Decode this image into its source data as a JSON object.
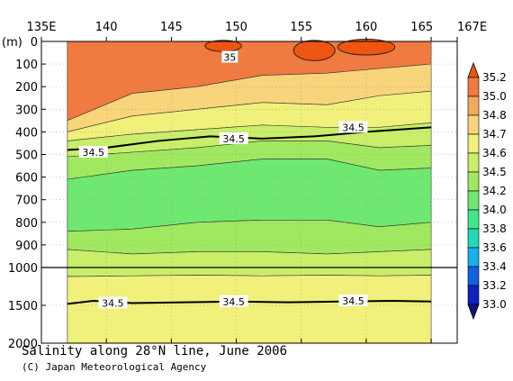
{
  "chart_data": {
    "type": "heatmap",
    "title": "Salinity along 28°N line, June 2006",
    "credit": "(C) Japan Meteorological Agency",
    "x_ticks": [
      {
        "label": "135E",
        "lon": 135
      },
      {
        "label": "140",
        "lon": 140
      },
      {
        "label": "145",
        "lon": 145
      },
      {
        "label": "150",
        "lon": 150
      },
      {
        "label": "155",
        "lon": 155
      },
      {
        "label": "160",
        "lon": 160
      },
      {
        "label": "165",
        "lon": 165
      },
      {
        "label": "167E",
        "lon": 167
      }
    ],
    "y_unit_label": "(m)",
    "y_ticks_upper": [
      0,
      100,
      200,
      300,
      400,
      500,
      600,
      700,
      800,
      900,
      1000
    ],
    "y_ticks_lower": [
      1500,
      2000
    ],
    "xlim": [
      135,
      167
    ],
    "data_lon_range": [
      137,
      165
    ],
    "ylim_upper": [
      0,
      1000
    ],
    "ylim_lower": [
      1000,
      2000
    ],
    "colorbar": {
      "labels": [
        "35.2",
        "35.0",
        "34.8",
        "34.7",
        "34.6",
        "34.5",
        "34.2",
        "34.0",
        "33.8",
        "33.6",
        "33.4",
        "33.2",
        "33.0"
      ],
      "colors": [
        "#ee5511",
        "#f07a40",
        "#f5aa5a",
        "#f8d47a",
        "#f0f07a",
        "#c8ee6a",
        "#a0e860",
        "#6ee870",
        "#3ee88a",
        "#22d8b8",
        "#18b0e8",
        "#1060e0",
        "#1020c0",
        "#101080"
      ]
    },
    "bands_upper": [
      {
        "value": 34.9,
        "color": "#f07a40",
        "top": [
          0,
          0,
          0,
          0,
          0,
          0,
          0
        ],
        "bottom": [
          350,
          230,
          200,
          150,
          140,
          120,
          100
        ]
      },
      {
        "value": 34.75,
        "color": "#f8d47a",
        "bottom": [
          400,
          330,
          300,
          270,
          280,
          240,
          220
        ]
      },
      {
        "value": 34.65,
        "color": "#f0f07a",
        "bottom": [
          440,
          410,
          390,
          370,
          380,
          380,
          360
        ]
      },
      {
        "value": 34.55,
        "color": "#c8ee6a",
        "bottom": [
          510,
          490,
          470,
          440,
          440,
          470,
          460
        ]
      },
      {
        "value": 34.3,
        "color": "#a0e860",
        "bottom": [
          610,
          570,
          550,
          520,
          520,
          570,
          560
        ]
      },
      {
        "value": 34.1,
        "color": "#6ee870",
        "bottom": [
          840,
          830,
          800,
          790,
          790,
          820,
          800
        ]
      },
      {
        "value": 34.3,
        "color": "#a0e860",
        "bottom": [
          920,
          940,
          930,
          930,
          940,
          930,
          920
        ]
      },
      {
        "value": 34.55,
        "color": "#c8ee6a",
        "bottom": [
          1000,
          1000,
          1000,
          1000,
          1000,
          1000,
          1000
        ]
      }
    ],
    "bands_lower": [
      {
        "value": 34.55,
        "color": "#c8ee6a",
        "top": [
          1000,
          1000,
          1000,
          1000,
          1000,
          1000,
          1000
        ],
        "bottom": [
          1120,
          1110,
          1100,
          1110,
          1100,
          1110,
          1100
        ]
      },
      {
        "value": 34.6,
        "color": "#f0f07a",
        "bottom": [
          2000,
          2000,
          2000,
          2000,
          2000,
          2000,
          2000
        ]
      }
    ],
    "band_lons": [
      137,
      142,
      147,
      152,
      157,
      161,
      165
    ],
    "contour_labels": [
      {
        "text": "35",
        "lon": 149.5,
        "depth": 70
      },
      {
        "text": "34.5",
        "lon": 149.8,
        "depth": 430
      },
      {
        "text": "34.5",
        "lon": 159.0,
        "depth": 380
      },
      {
        "text": "34.5",
        "lon": 139.0,
        "depth": 490
      },
      {
        "text": "34.5",
        "lon": 140.5,
        "depth": 1470
      },
      {
        "text": "34.5",
        "lon": 149.8,
        "depth": 1450
      },
      {
        "text": "34.5",
        "lon": 159.0,
        "depth": 1440
      }
    ],
    "contour_34_5_upper": [
      [
        137,
        480
      ],
      [
        140,
        470
      ],
      [
        144,
        440
      ],
      [
        148,
        420
      ],
      [
        152,
        430
      ],
      [
        156,
        420
      ],
      [
        160,
        400
      ],
      [
        165,
        380
      ]
    ],
    "contour_34_5_lower": [
      [
        137,
        1480
      ],
      [
        139,
        1440
      ],
      [
        142,
        1470
      ],
      [
        146,
        1460
      ],
      [
        150,
        1450
      ],
      [
        154,
        1460
      ],
      [
        158,
        1450
      ],
      [
        162,
        1440
      ],
      [
        165,
        1450
      ]
    ],
    "grid": true
  }
}
